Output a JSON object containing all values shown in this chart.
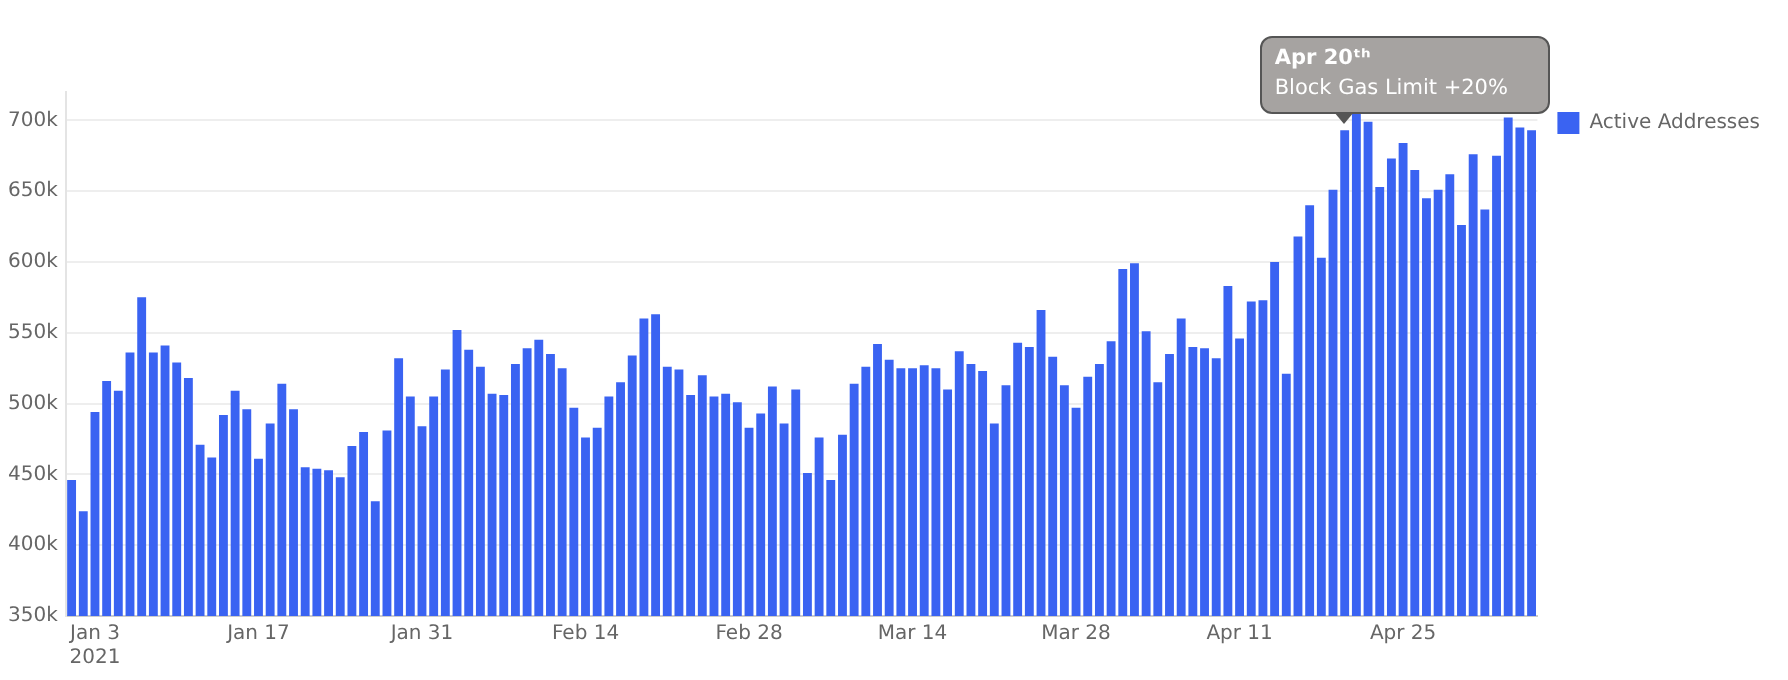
{
  "chart_data": {
    "type": "bar",
    "x": [
      "2021-01-01",
      "2021-01-02",
      "2021-01-03",
      "2021-01-04",
      "2021-01-05",
      "2021-01-06",
      "2021-01-07",
      "2021-01-08",
      "2021-01-09",
      "2021-01-10",
      "2021-01-11",
      "2021-01-12",
      "2021-01-13",
      "2021-01-14",
      "2021-01-15",
      "2021-01-16",
      "2021-01-17",
      "2021-01-18",
      "2021-01-19",
      "2021-01-20",
      "2021-01-21",
      "2021-01-22",
      "2021-01-23",
      "2021-01-24",
      "2021-01-25",
      "2021-01-26",
      "2021-01-27",
      "2021-01-28",
      "2021-01-29",
      "2021-01-30",
      "2021-01-31",
      "2021-02-01",
      "2021-02-02",
      "2021-02-03",
      "2021-02-04",
      "2021-02-05",
      "2021-02-06",
      "2021-02-07",
      "2021-02-08",
      "2021-02-09",
      "2021-02-10",
      "2021-02-11",
      "2021-02-12",
      "2021-02-13",
      "2021-02-14",
      "2021-02-15",
      "2021-02-16",
      "2021-02-17",
      "2021-02-18",
      "2021-02-19",
      "2021-02-20",
      "2021-02-21",
      "2021-02-22",
      "2021-02-23",
      "2021-02-24",
      "2021-02-25",
      "2021-02-26",
      "2021-02-27",
      "2021-02-28",
      "2021-03-01",
      "2021-03-02",
      "2021-03-03",
      "2021-03-04",
      "2021-03-05",
      "2021-03-06",
      "2021-03-07",
      "2021-03-08",
      "2021-03-09",
      "2021-03-10",
      "2021-03-11",
      "2021-03-12",
      "2021-03-13",
      "2021-03-14",
      "2021-03-15",
      "2021-03-16",
      "2021-03-17",
      "2021-03-18",
      "2021-03-19",
      "2021-03-20",
      "2021-03-21",
      "2021-03-22",
      "2021-03-23",
      "2021-03-24",
      "2021-03-25",
      "2021-03-26",
      "2021-03-27",
      "2021-03-28",
      "2021-03-29",
      "2021-03-30",
      "2021-03-31",
      "2021-04-01",
      "2021-04-02",
      "2021-04-03",
      "2021-04-04",
      "2021-04-05",
      "2021-04-06",
      "2021-04-07",
      "2021-04-08",
      "2021-04-09",
      "2021-04-10",
      "2021-04-11",
      "2021-04-12",
      "2021-04-13",
      "2021-04-14",
      "2021-04-15",
      "2021-04-16",
      "2021-04-17",
      "2021-04-18",
      "2021-04-19",
      "2021-04-20",
      "2021-04-21",
      "2021-04-22",
      "2021-04-23",
      "2021-04-24",
      "2021-04-25",
      "2021-04-26",
      "2021-04-27",
      "2021-04-28",
      "2021-04-29",
      "2021-04-30",
      "2021-05-01",
      "2021-05-02",
      "2021-05-03",
      "2021-05-04",
      "2021-05-05",
      "2021-05-06"
    ],
    "series": [
      {
        "name": "Active Addresses",
        "color": "#3a63f2",
        "values": [
          446000,
          424000,
          494000,
          516000,
          509000,
          536000,
          575000,
          536000,
          541000,
          529000,
          518000,
          471000,
          462000,
          492000,
          509000,
          496000,
          461000,
          486000,
          514000,
          496000,
          455000,
          454000,
          453000,
          448000,
          470000,
          480000,
          431000,
          481000,
          532000,
          505000,
          484000,
          505000,
          524000,
          552000,
          538000,
          526000,
          507000,
          506000,
          528000,
          539000,
          545000,
          535000,
          525000,
          497000,
          476000,
          483000,
          505000,
          515000,
          534000,
          560000,
          563000,
          526000,
          524000,
          506000,
          520000,
          505000,
          507000,
          501000,
          483000,
          493000,
          512000,
          486000,
          510000,
          451000,
          476000,
          446000,
          478000,
          514000,
          526000,
          542000,
          531000,
          525000,
          525000,
          527000,
          525000,
          510000,
          537000,
          528000,
          523000,
          486000,
          513000,
          543000,
          540000,
          566000,
          533000,
          513000,
          497000,
          519000,
          528000,
          544000,
          595000,
          599000,
          551000,
          515000,
          535000,
          560000,
          540000,
          539000,
          532000,
          583000,
          546000,
          572000,
          573000,
          600000,
          521000,
          618000,
          640000,
          603000,
          651000,
          693000,
          705000,
          699000,
          653000,
          673000,
          684000,
          665000,
          645000,
          651000,
          662000,
          626000,
          676000,
          637000,
          675000,
          702000,
          695000,
          693000
        ]
      }
    ],
    "xlim": [
      "2020-12-31T12:00",
      "2021-05-06T12:00"
    ],
    "xticks": [
      {
        "value": "2021-01-03",
        "label": "Jan 3\n2021"
      },
      {
        "value": "2021-01-17",
        "label": "Jan 17"
      },
      {
        "value": "2021-01-31",
        "label": "Jan 31"
      },
      {
        "value": "2021-02-14",
        "label": "Feb 14"
      },
      {
        "value": "2021-02-28",
        "label": "Feb 28"
      },
      {
        "value": "2021-03-14",
        "label": "Mar 14"
      },
      {
        "value": "2021-03-28",
        "label": "Mar 28"
      },
      {
        "value": "2021-04-11",
        "label": "Apr 11"
      },
      {
        "value": "2021-04-25",
        "label": "Apr 25"
      }
    ],
    "ylim": [
      350000,
      720000
    ],
    "yticks": [
      {
        "value": 350000,
        "label": "350k"
      },
      {
        "value": 400000,
        "label": "400k"
      },
      {
        "value": 450000,
        "label": "450k"
      },
      {
        "value": 500000,
        "label": "500k"
      },
      {
        "value": 550000,
        "label": "550k"
      },
      {
        "value": 600000,
        "label": "600k"
      },
      {
        "value": 650000,
        "label": "650k"
      },
      {
        "value": 700000,
        "label": "700k"
      }
    ],
    "annotations": [
      {
        "text": "Apr 20ᵗʰ\nBlock Gas Limit +20%",
        "x": "2021-04-20",
        "y": 693000
      }
    ],
    "grid": "y",
    "legend": "top right"
  }
}
